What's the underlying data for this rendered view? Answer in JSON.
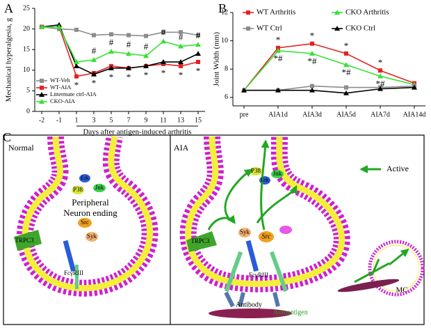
{
  "chart_data": [
    {
      "type": "line",
      "panel": "A",
      "y_label": "Mechanical hyperalgesia, g",
      "x_label": "Days after antigen-induced arthritis",
      "categories": [
        "-2",
        "-1",
        "1",
        "3",
        "5",
        "7",
        "9",
        "11",
        "13",
        "15"
      ],
      "ylim": [
        0,
        25
      ],
      "yticks": [
        0,
        5,
        10,
        15,
        20,
        25
      ],
      "legend": "lower left",
      "series": [
        {
          "name": "WT-Veh",
          "color": "#8c8c8c",
          "marker": "square",
          "values": [
            20.5,
            20,
            19.8,
            18.5,
            18.7,
            18.5,
            18.3,
            19.2,
            19.2,
            18.5
          ]
        },
        {
          "name": "WT-AIA",
          "color": "#e52222",
          "marker": "square",
          "values": [
            20.5,
            20.5,
            8.5,
            9.3,
            11,
            10.5,
            11,
            11.5,
            11,
            12
          ]
        },
        {
          "name": "Littermate ctrl-AIA",
          "color": "#000000",
          "marker": "triangle",
          "values": [
            20.5,
            21,
            11,
            9,
            10.5,
            10.5,
            11,
            12,
            12,
            14
          ]
        },
        {
          "name": "CKO-AIA",
          "color": "#33e233",
          "marker": "triangle",
          "values": [
            20.5,
            20.5,
            12,
            12.5,
            14.5,
            14,
            13.5,
            17,
            15.8,
            16.2
          ]
        }
      ],
      "annotations": [
        {
          "text": "*",
          "at": [
            "1",
            "3",
            "5",
            "7",
            "9",
            "11",
            "13",
            "15"
          ]
        },
        {
          "text": "#",
          "at": [
            "3",
            "5",
            "7",
            "9",
            "11",
            "13",
            "15"
          ]
        }
      ]
    },
    {
      "type": "line",
      "panel": "B",
      "y_label": "Joint Width (mm)",
      "categories": [
        "pre",
        "AIA1d",
        "AIA3d",
        "AIA5d",
        "AIA7d",
        "AIA14d"
      ],
      "ylim": [
        5.4,
        12
      ],
      "yticks": [
        6,
        8,
        10,
        12
      ],
      "legend": "upper center",
      "series": [
        {
          "name": "WT Arthritis",
          "color": "#e52222",
          "marker": "square",
          "values": [
            6.5,
            9.5,
            9.8,
            9.1,
            7.9,
            7.0
          ]
        },
        {
          "name": "CKO Arthritis",
          "color": "#33e233",
          "marker": "triangle",
          "values": [
            6.5,
            9.3,
            9.1,
            8.3,
            7.5,
            6.9
          ]
        },
        {
          "name": "WT Ctrl",
          "color": "#8c8c8c",
          "marker": "square",
          "values": [
            6.5,
            6.5,
            6.8,
            6.7,
            6.7,
            6.8
          ]
        },
        {
          "name": "CKO Ctrl",
          "color": "#000000",
          "marker": "triangle",
          "values": [
            6.5,
            6.5,
            6.5,
            6.3,
            6.6,
            6.7
          ]
        }
      ],
      "annotations": [
        {
          "text": "*",
          "at": [
            "AIA1d",
            "AIA3d",
            "AIA5d",
            "AIA7d"
          ]
        },
        {
          "text": "*#",
          "at": [
            "AIA1d",
            "AIA3d",
            "AIA5d",
            "AIA7d"
          ]
        }
      ]
    }
  ],
  "diagram": {
    "panel": "C",
    "normal": {
      "title": "Normal",
      "erk": "Erk",
      "p38": "P38",
      "jnk": "Jnk",
      "neuron": [
        "Peripheral",
        "Neuron ending"
      ],
      "src": "Src",
      "syk": "Syk",
      "trpc3": "TRPC3",
      "fc": "FcγRIII"
    },
    "aia": {
      "title": "AIA",
      "active": "Active",
      "p38": "P38",
      "erk": "Erk",
      "jnk": "Jnk",
      "syk": "Syk",
      "src": "Src",
      "trpc3": "TRPC3",
      "fc": "FcγRIII",
      "antibody": "Antibody",
      "autoantigen": "Autoantigen",
      "mc": "MC"
    }
  }
}
